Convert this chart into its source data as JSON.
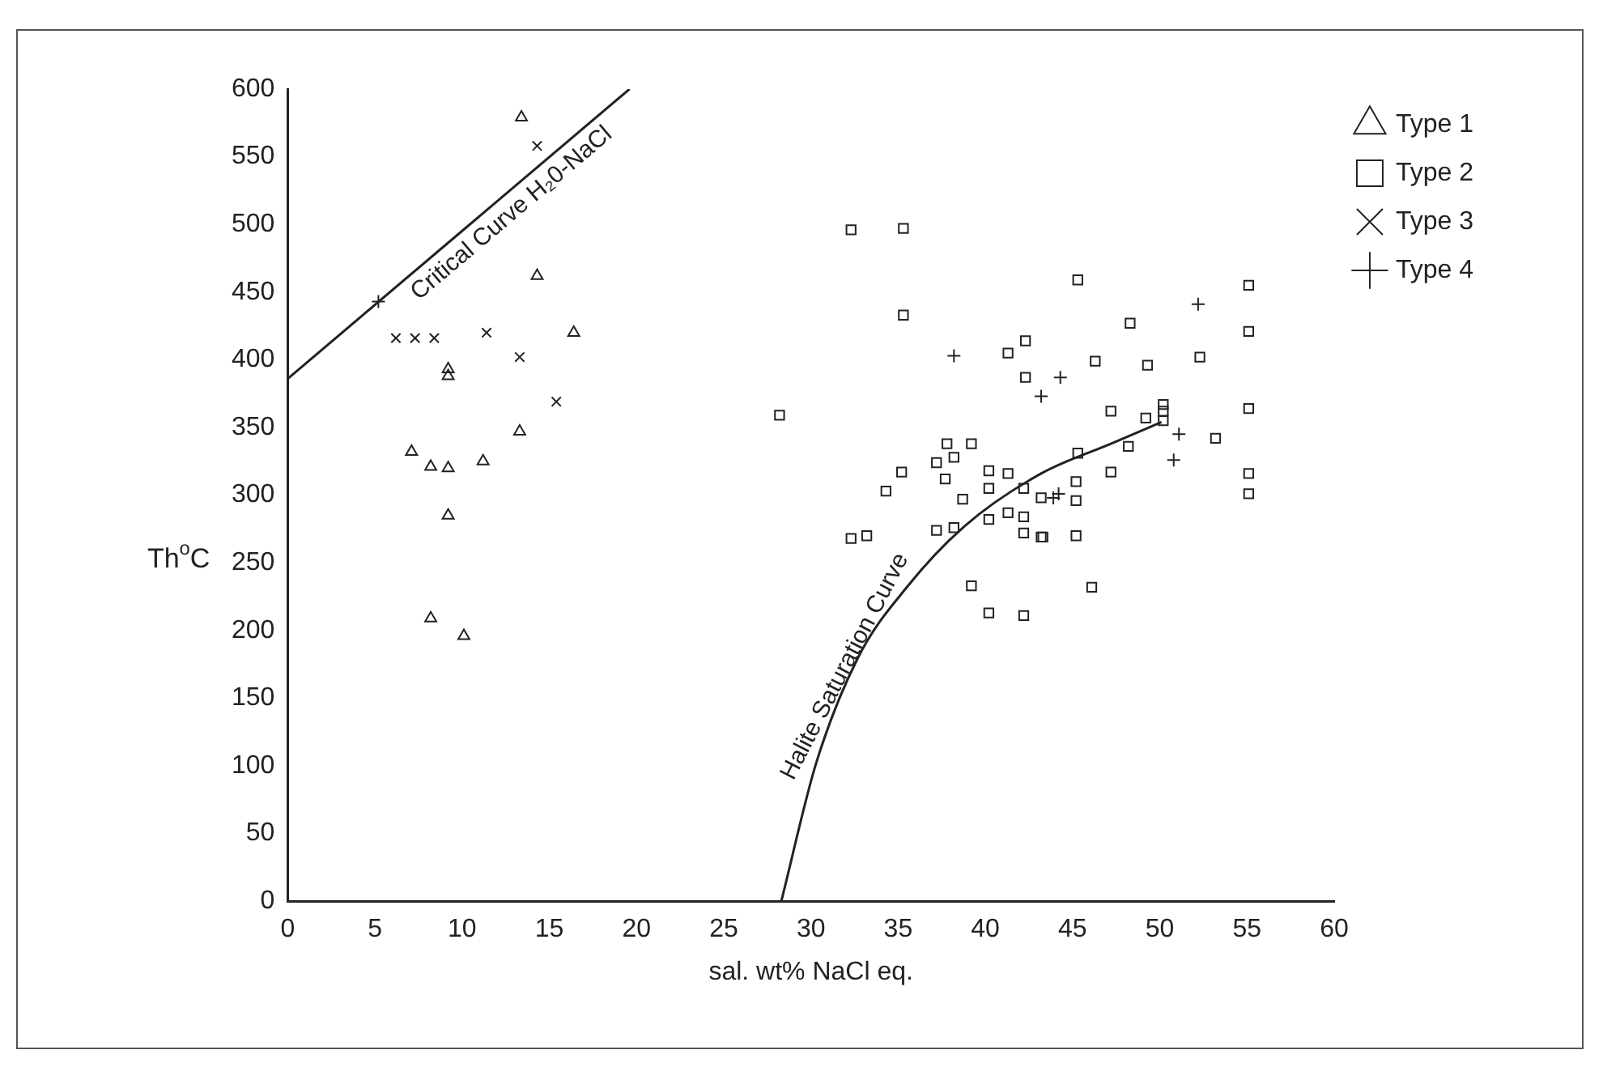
{
  "chart_data": {
    "type": "scatter",
    "xlabel": "sal. wt% NaCl eq.",
    "ylabel": "Th$^{o}$C",
    "xlim": [
      0,
      60
    ],
    "xticks": [
      0,
      5,
      10,
      15,
      20,
      25,
      30,
      35,
      40,
      45,
      50,
      55,
      60
    ],
    "ylim": [
      0,
      600
    ],
    "yticks": [
      0,
      50,
      100,
      150,
      200,
      250,
      300,
      350,
      400,
      450,
      500,
      550,
      600
    ],
    "grid": false,
    "legend": "right",
    "series": [
      {
        "name": "Type 1",
        "color": "#222222",
        "marker": "triangle",
        "x": [
          13.4,
          14.3,
          16.4,
          9.2,
          9.2,
          13.3,
          7.1,
          8.2,
          9.2,
          11.2,
          9.2,
          8.2,
          10.1
        ],
        "values": [
          579,
          462,
          420,
          393,
          388,
          347,
          332,
          321,
          320,
          325,
          285,
          209,
          196
        ]
      },
      {
        "name": "Type 2",
        "color": "#222222",
        "marker": "square",
        "x": [
          32.3,
          35.3,
          35.3,
          41.3,
          42.3,
          42.3,
          28.2,
          37.8,
          39.2,
          37.2,
          38.2,
          35.2,
          37.7,
          40.2,
          41.3,
          40.2,
          42.2,
          34.3,
          38.7,
          43.2,
          41.3,
          40.2,
          42.2,
          42.2,
          43.2,
          37.2,
          38.2,
          32.3,
          33.2,
          39.2,
          40.2,
          42.2,
          46.1,
          45.3,
          55.1,
          55.1,
          48.3,
          46.3,
          49.3,
          52.3,
          47.2,
          49.2,
          50.2,
          50.2,
          50.2,
          55.1,
          53.2,
          48.2,
          45.3,
          47.2,
          45.2,
          45.2,
          43.3,
          45.2,
          55.1,
          55.1
        ],
        "values": [
          496,
          497,
          433,
          405,
          414,
          387,
          359,
          338,
          338,
          324,
          328,
          317,
          312,
          318,
          316,
          305,
          305,
          303,
          297,
          298,
          287,
          282,
          284,
          272,
          269,
          274,
          276,
          268,
          270,
          233,
          213,
          211,
          232,
          459,
          455,
          421,
          427,
          399,
          396,
          402,
          362,
          357,
          367,
          362,
          355,
          364,
          342,
          336,
          331,
          317,
          310,
          296,
          269,
          270,
          316,
          301
        ]
      },
      {
        "name": "Type 3",
        "color": "#222222",
        "marker": "x",
        "x": [
          14.3,
          6.2,
          7.3,
          8.4,
          11.4,
          13.3,
          15.4
        ],
        "values": [
          558,
          416,
          416,
          416,
          420,
          402,
          369
        ]
      },
      {
        "name": "Type 4",
        "color": "#222222",
        "marker": "cross",
        "x": [
          5.2,
          38.2,
          43.2,
          44.3,
          52.2,
          51.1,
          50.8,
          44.2,
          43.9
        ],
        "values": [
          443,
          403,
          373,
          387,
          441,
          345,
          326,
          301,
          298
        ]
      },
      {
        "name": "Critical Curve H₂0-NaCl",
        "type": "line",
        "color": "#222222",
        "marker": "none",
        "x": [
          0,
          19.6
        ],
        "values": [
          386,
          600
        ]
      },
      {
        "name": "Halite Saturation Curve",
        "type": "line",
        "color": "#222222",
        "marker": "none",
        "x": [
          28.3,
          30.3,
          32.7,
          35.5,
          38.8,
          43.2,
          47.2,
          50.1
        ],
        "values": [
          0,
          102,
          180,
          232,
          277,
          316,
          338,
          354
        ]
      }
    ]
  }
}
